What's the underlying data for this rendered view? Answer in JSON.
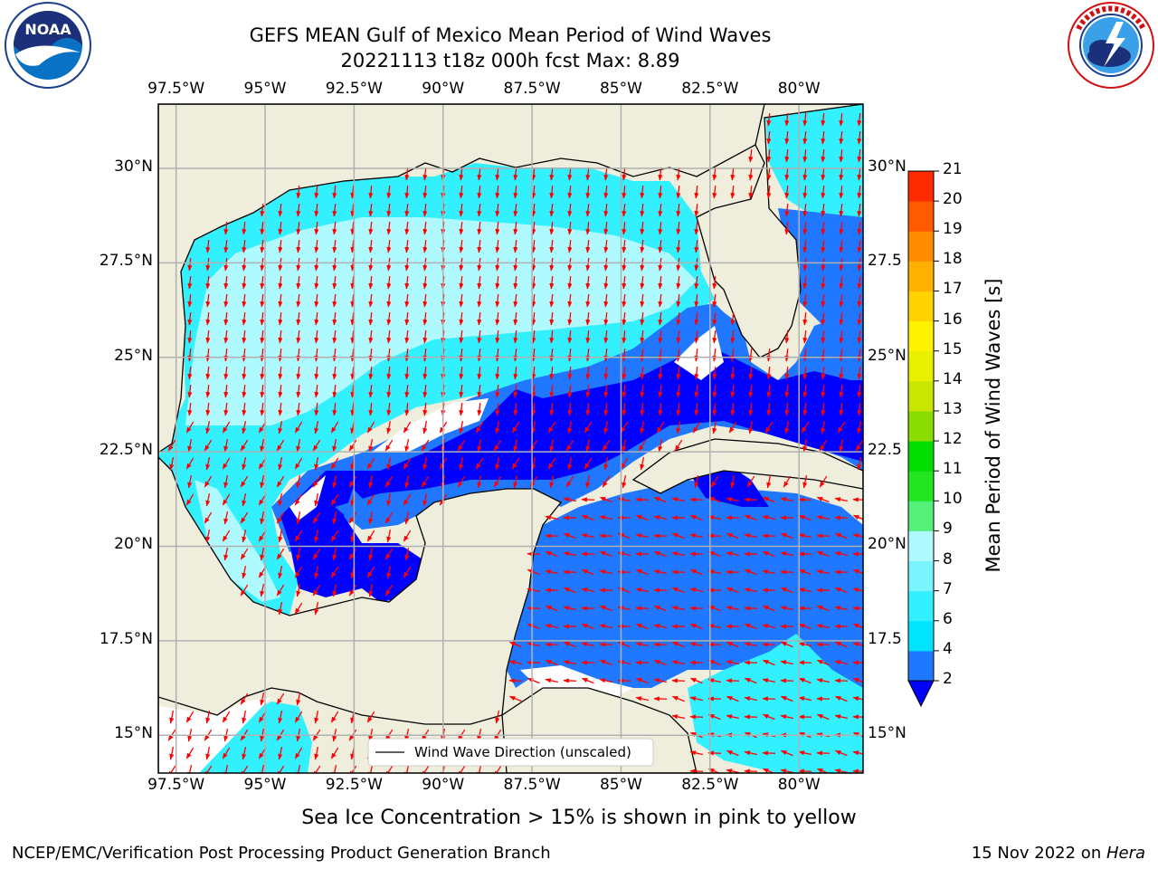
{
  "header": {
    "title_line1": "GEFS MEAN Gulf of Mexico Mean Period of Wind Waves",
    "title_line2": "20221113 t18z 000h fcst   Max: 8.89"
  },
  "logos": {
    "left": {
      "name": "NOAA",
      "text": "NOAA",
      "ring_text": "NATIONAL OCEANIC AND ATMOSPHERIC ADMINISTRATION · U.S. DEPARTMENT OF COMMERCE"
    },
    "right": {
      "name": "National Weather Service",
      "ring_text": "NATIONAL WEATHER SERVICE"
    }
  },
  "map": {
    "lon_ticks": [
      "97.5°W",
      "95°W",
      "92.5°W",
      "90°W",
      "87.5°W",
      "85°W",
      "82.5°W",
      "80°W"
    ],
    "lat_ticks": [
      "30°N",
      "27.5°N",
      "25°N",
      "22.5°N",
      "20°N",
      "17.5°N",
      "15°N"
    ],
    "lat_ticks_right": [
      "30°N",
      "27.5",
      "25°N",
      "22.5",
      "20°N",
      "17.5",
      "15°N"
    ],
    "lon_range": [
      -98,
      -78.2
    ],
    "lat_range": [
      14,
      31.7
    ],
    "legend_label": "Wind Wave Direction (unscaled)",
    "colors": {
      "land": "#efeedc",
      "grid": "#b0b0b0",
      "arrow": "#ff0000",
      "coast": "#000000"
    }
  },
  "colorbar": {
    "label": "Mean Period of Wind Waves [s]",
    "ticks": [
      "2",
      "4",
      "6",
      "7",
      "8",
      "9",
      "10",
      "11",
      "12",
      "13",
      "14",
      "15",
      "16",
      "17",
      "18",
      "19",
      "20",
      "21"
    ],
    "colors": [
      "#1f78ff",
      "#00e5ff",
      "#33f0ff",
      "#7af5ff",
      "#aefaff",
      "#55f07a",
      "#22e622",
      "#00dd00",
      "#8bdc00",
      "#c8e600",
      "#e8f000",
      "#fff200",
      "#ffd200",
      "#ffb000",
      "#ff8c00",
      "#ff5a00",
      "#ff2a00"
    ],
    "under_color": "#0000ff"
  },
  "notes": {
    "sea_ice": "Sea Ice Concentration > 15% is shown in pink to yellow"
  },
  "footer": {
    "left": "NCEP/EMC/Verification Post Processing Product Generation Branch",
    "right_date": "15 Nov 2022 on ",
    "right_machine": "Hera"
  }
}
